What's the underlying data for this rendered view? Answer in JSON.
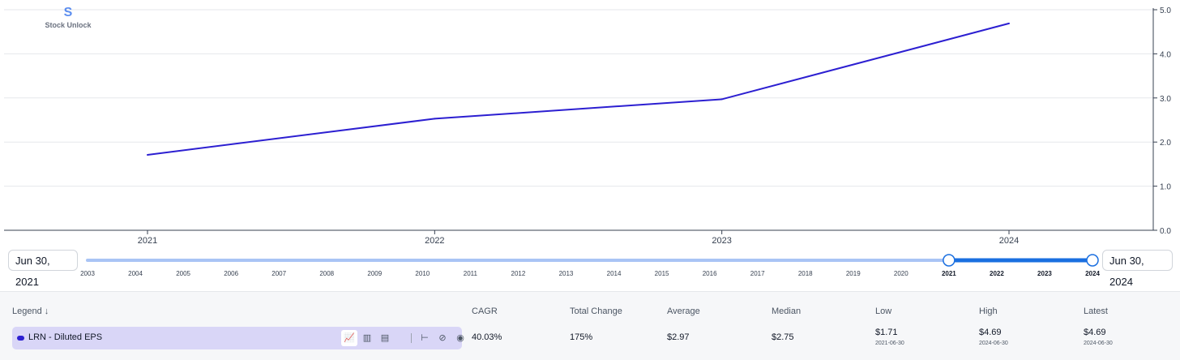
{
  "brand": {
    "name": "Stock Unlock",
    "logo_icon": "S"
  },
  "chart_data": {
    "type": "line",
    "series": [
      {
        "name": "LRN - Diluted EPS",
        "color": "#2c1fd1",
        "x": [
          "2021",
          "2022",
          "2023",
          "2024"
        ],
        "values": [
          1.71,
          2.53,
          2.97,
          4.69
        ]
      }
    ],
    "x_ticks": [
      "2021",
      "2022",
      "2023",
      "2024"
    ],
    "y_ticks": [
      "0.0",
      "1.0",
      "2.0",
      "3.0",
      "4.0",
      "5.0"
    ],
    "ylim": [
      0,
      5
    ],
    "y_axis_position": "right",
    "grid": true
  },
  "range": {
    "start_label": "Jun 30, 2021",
    "end_label": "Jun 30, 2024",
    "years": [
      "2003",
      "2004",
      "2005",
      "2006",
      "2007",
      "2008",
      "2009",
      "2010",
      "2011",
      "2012",
      "2013",
      "2014",
      "2015",
      "2016",
      "2017",
      "2018",
      "2019",
      "2020",
      "2021",
      "2022",
      "2023",
      "2024"
    ],
    "selected_start": "2021",
    "selected_end": "2024"
  },
  "summary": {
    "headers": {
      "legend": "Legend",
      "cagr": "CAGR",
      "total_change": "Total Change",
      "average": "Average",
      "median": "Median",
      "low": "Low",
      "high": "High",
      "latest": "Latest"
    },
    "legend_sort_icon": "↓",
    "row": {
      "label": "LRN - Diluted EPS",
      "cagr": "40.03%",
      "total_change": "175%",
      "average": "$2.97",
      "median": "$2.75",
      "low": "$1.71",
      "low_date": "2021-06-30",
      "high": "$4.69",
      "high_date": "2024-06-30",
      "latest": "$4.69",
      "latest_date": "2024-06-30"
    },
    "tools": [
      {
        "name": "line-chart-icon",
        "glyph": "📈"
      },
      {
        "name": "bar-chart-icon",
        "glyph": "▥"
      },
      {
        "name": "bar-chart-alt-icon",
        "glyph": "▤"
      },
      {
        "name": "range-icon",
        "glyph": "⊢"
      },
      {
        "name": "hide-scale-icon",
        "glyph": "⊘"
      },
      {
        "name": "visibility-icon",
        "glyph": "◉"
      }
    ]
  }
}
